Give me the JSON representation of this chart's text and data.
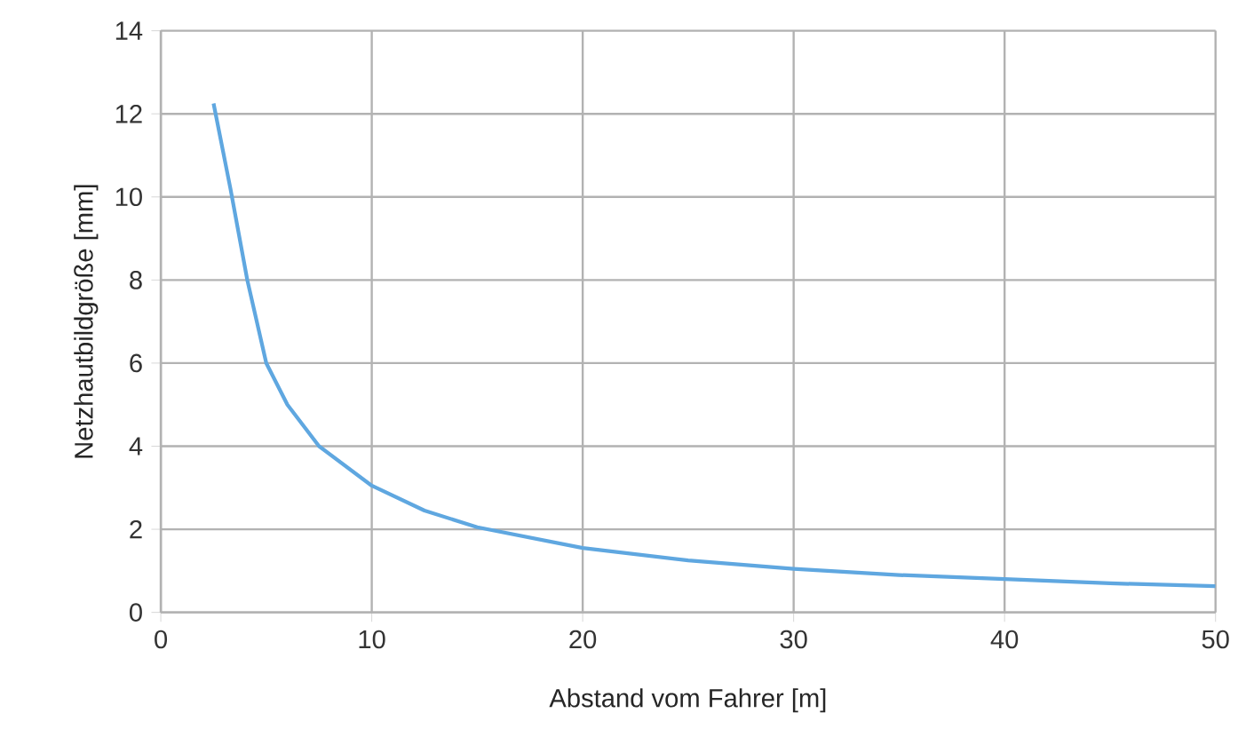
{
  "chart_data": {
    "type": "line",
    "xlabel": "Abstand vom Fahrer [m]",
    "ylabel": "Netzhautbildgröße [mm]",
    "x": [
      2.5,
      3.3,
      4.1,
      5,
      6,
      7.5,
      10,
      12.5,
      15,
      20,
      25,
      30,
      35,
      40,
      45,
      50
    ],
    "series": [
      {
        "color": "#5fa7e0",
        "values": [
          12.25,
          10.2,
          8.0,
          6.0,
          5.0,
          4.0,
          3.05,
          2.45,
          2.05,
          1.55,
          1.25,
          1.05,
          0.9,
          0.8,
          0.7,
          0.63
        ]
      }
    ],
    "xlim": [
      0,
      50
    ],
    "ylim": [
      0,
      14
    ],
    "xticks": [
      0,
      10,
      20,
      30,
      40,
      50
    ],
    "yticks": [
      0,
      2,
      4,
      6,
      8,
      10,
      12,
      14
    ],
    "grid": true,
    "marker": "none",
    "line_style": "solid"
  }
}
